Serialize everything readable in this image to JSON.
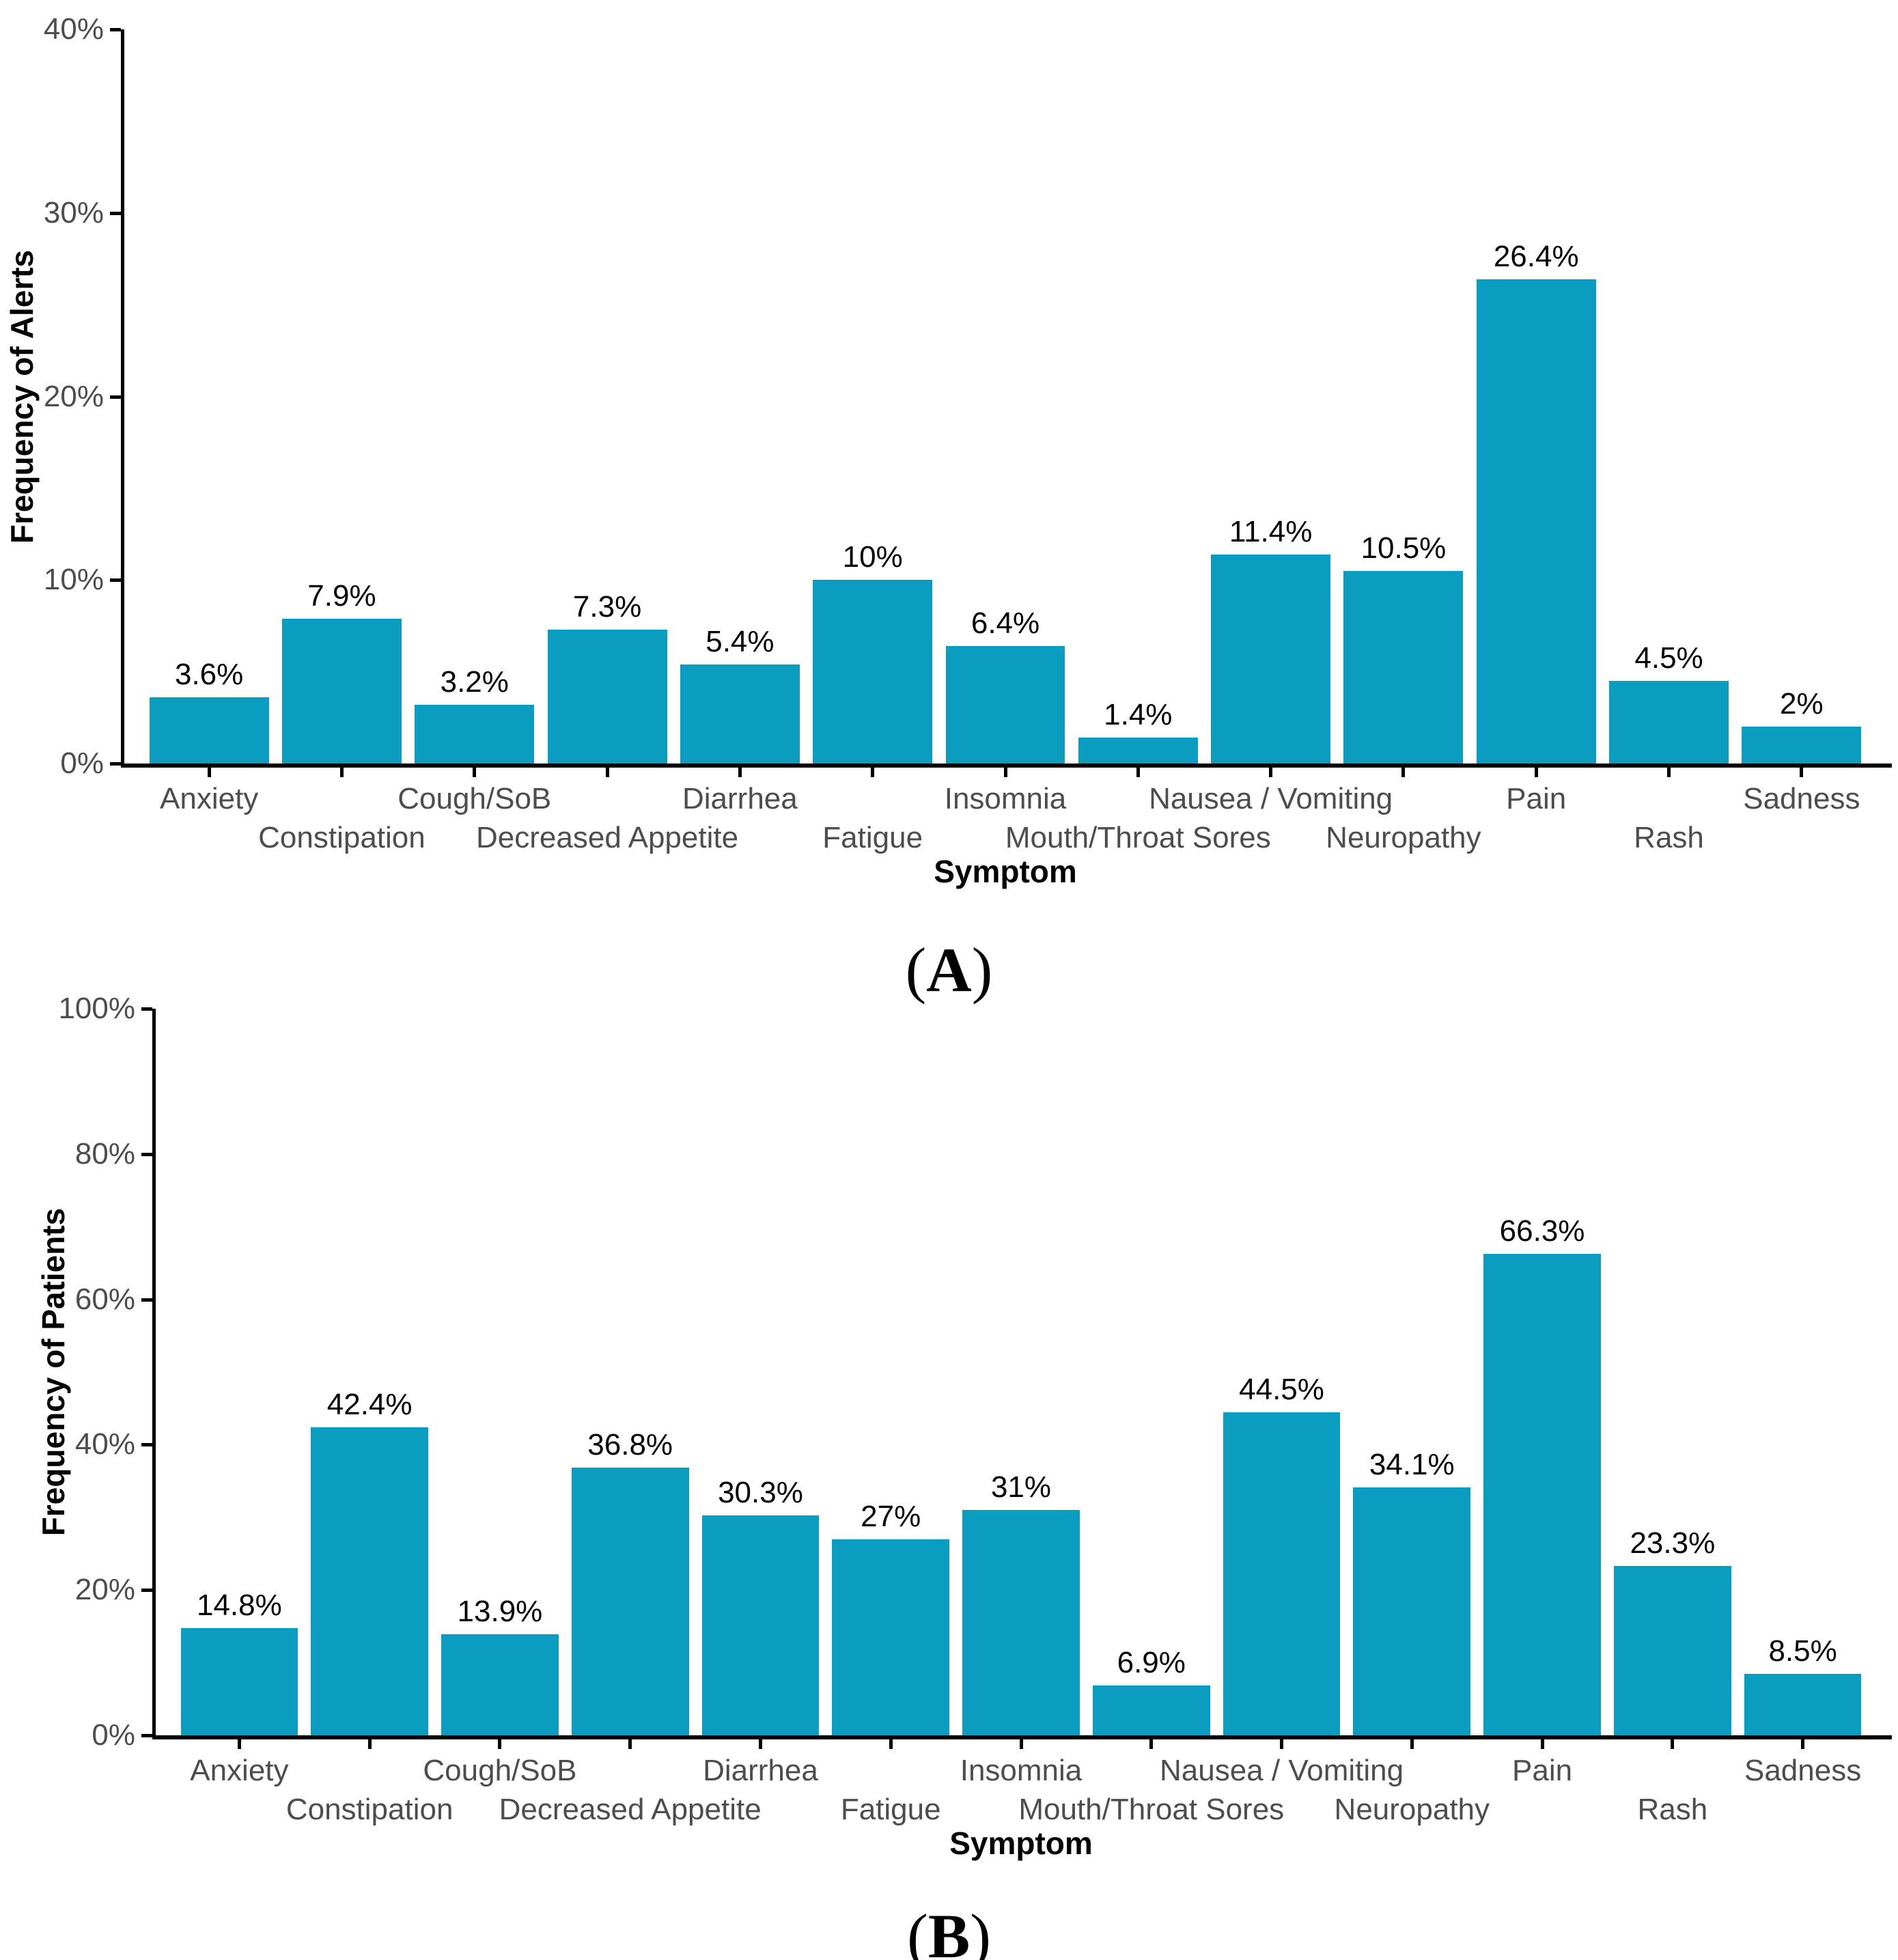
{
  "figure": {
    "background_color": "#ffffff",
    "bar_color": "#0a9dc0",
    "axis_color": "#000000",
    "tick_text_color": "#4d4d4d",
    "value_text_color": "#000000"
  },
  "captions": {
    "panel_a": "(A)",
    "panel_b": "(B)"
  },
  "chart_data": [
    {
      "type": "bar",
      "panel_caption": "(A)",
      "title": "",
      "xlabel": "Symptom",
      "ylabel": "Frequency of Alerts",
      "ylim": [
        0,
        40
      ],
      "ytick_values": [
        0,
        10,
        20,
        30,
        40
      ],
      "ytick_labels": [
        "0%",
        "10%",
        "20%",
        "30%",
        "40%"
      ],
      "grid": false,
      "legend": "none",
      "bar_color": "#0a9dc0",
      "axis_color": "#000000",
      "categories": [
        "Anxiety",
        "Constipation",
        "Cough/SoB",
        "Decreased Appetite",
        "Diarrhea",
        "Fatigue",
        "Insomnia",
        "Mouth/Throat Sores",
        "Nausea / Vomiting",
        "Neuropathy",
        "Pain",
        "Rash",
        "Sadness"
      ],
      "values": [
        3.6,
        7.9,
        3.2,
        7.3,
        5.4,
        10,
        6.4,
        1.4,
        11.4,
        10.5,
        26.4,
        4.5,
        2
      ],
      "bar_labels": [
        "3.6%",
        "7.9%",
        "3.2%",
        "7.3%",
        "5.4%",
        "10%",
        "6.4%",
        "1.4%",
        "11.4%",
        "10.5%",
        "26.4%",
        "4.5%",
        "2%"
      ]
    },
    {
      "type": "bar",
      "panel_caption": "(B)",
      "title": "",
      "xlabel": "Symptom",
      "ylabel": "Frequency of Patients",
      "ylim": [
        0,
        100
      ],
      "ytick_values": [
        0,
        20,
        40,
        60,
        80,
        100
      ],
      "ytick_labels": [
        "0%",
        "20%",
        "40%",
        "60%",
        "80%",
        "100%"
      ],
      "grid": false,
      "legend": "none",
      "bar_color": "#0a9dc0",
      "axis_color": "#000000",
      "categories": [
        "Anxiety",
        "Constipation",
        "Cough/SoB",
        "Decreased Appetite",
        "Diarrhea",
        "Fatigue",
        "Insomnia",
        "Mouth/Throat Sores",
        "Nausea / Vomiting",
        "Neuropathy",
        "Pain",
        "Rash",
        "Sadness"
      ],
      "values": [
        14.8,
        42.4,
        13.9,
        36.8,
        30.3,
        27,
        31,
        6.9,
        44.5,
        34.1,
        66.3,
        23.3,
        8.5
      ],
      "bar_labels": [
        "14.8%",
        "42.4%",
        "13.9%",
        "36.8%",
        "30.3%",
        "27%",
        "31%",
        "6.9%",
        "44.5%",
        "34.1%",
        "66.3%",
        "23.3%",
        "8.5%"
      ]
    }
  ]
}
